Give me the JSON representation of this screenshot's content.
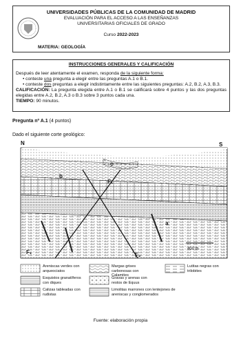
{
  "header": {
    "university": "UNIVERSIDADES PÚBLICAS DE LA COMUNIDAD DE MADRID",
    "line2": "EVALUACIÓN PARA EL ACCESO A LAS ENSEÑANZAS",
    "line3": "UNIVERSITARIAS OFICIALES DE GRADO",
    "course_label": "Curso",
    "course_year": "2022-2023",
    "subject": "MATERIA: GEOLOGÍA"
  },
  "instructions": {
    "title": "INSTRUCCIONES GENERALES Y CALIFICACIÓN",
    "intro_before": "Después de leer atentamente el examen, responda ",
    "intro_underlined": "de la siguiente forma:",
    "bullets": [
      {
        "before": "conteste ",
        "underlined": "una",
        "after": " pregunta a elegir entre las preguntas A.1 o B.1."
      },
      {
        "before": "conteste ",
        "underlined": "dos",
        "after": " preguntas a elegir indistintamente entre las siguientes preguntas: A.2, B.2, A.3, B.3."
      }
    ],
    "grading_label": "CALIFICACIÓN:",
    "grading_text": "La pregunta elegida entre A.1 o B.1 se calificará sobre 4 puntos y las dos preguntas elegidas entre A.2, B.2, A.3 o B.3 sobre 3 puntos cada una.",
    "time_label": "TIEMPO:",
    "time_text": "90 minutos."
  },
  "question": {
    "title": "Pregunta nº A.1",
    "points": "(4 puntos)",
    "prompt": "Dado el siguiente corte geológico:"
  },
  "diagram": {
    "north": "N",
    "south": "S",
    "label_c": "c",
    "label_b": "b",
    "fault_top": "F₁",
    "label_a": "a",
    "scale": "400 m",
    "fault_f1": "F₁",
    "fault_f2": "F₂"
  },
  "legend": [
    "Areniscas verdes con arqueociatos",
    "Margas grises carbonosas con Calamites",
    "Lutitas negras con trilobites",
    "Esquistos granatíferos con diques",
    "Gravas y arenas con restos de Equus",
    "Calizas tableadas con rudistas",
    "Limolitas marrones con lentejones de areniscas y conglomerados"
  ],
  "source": "Fuente: elaboración propia"
}
